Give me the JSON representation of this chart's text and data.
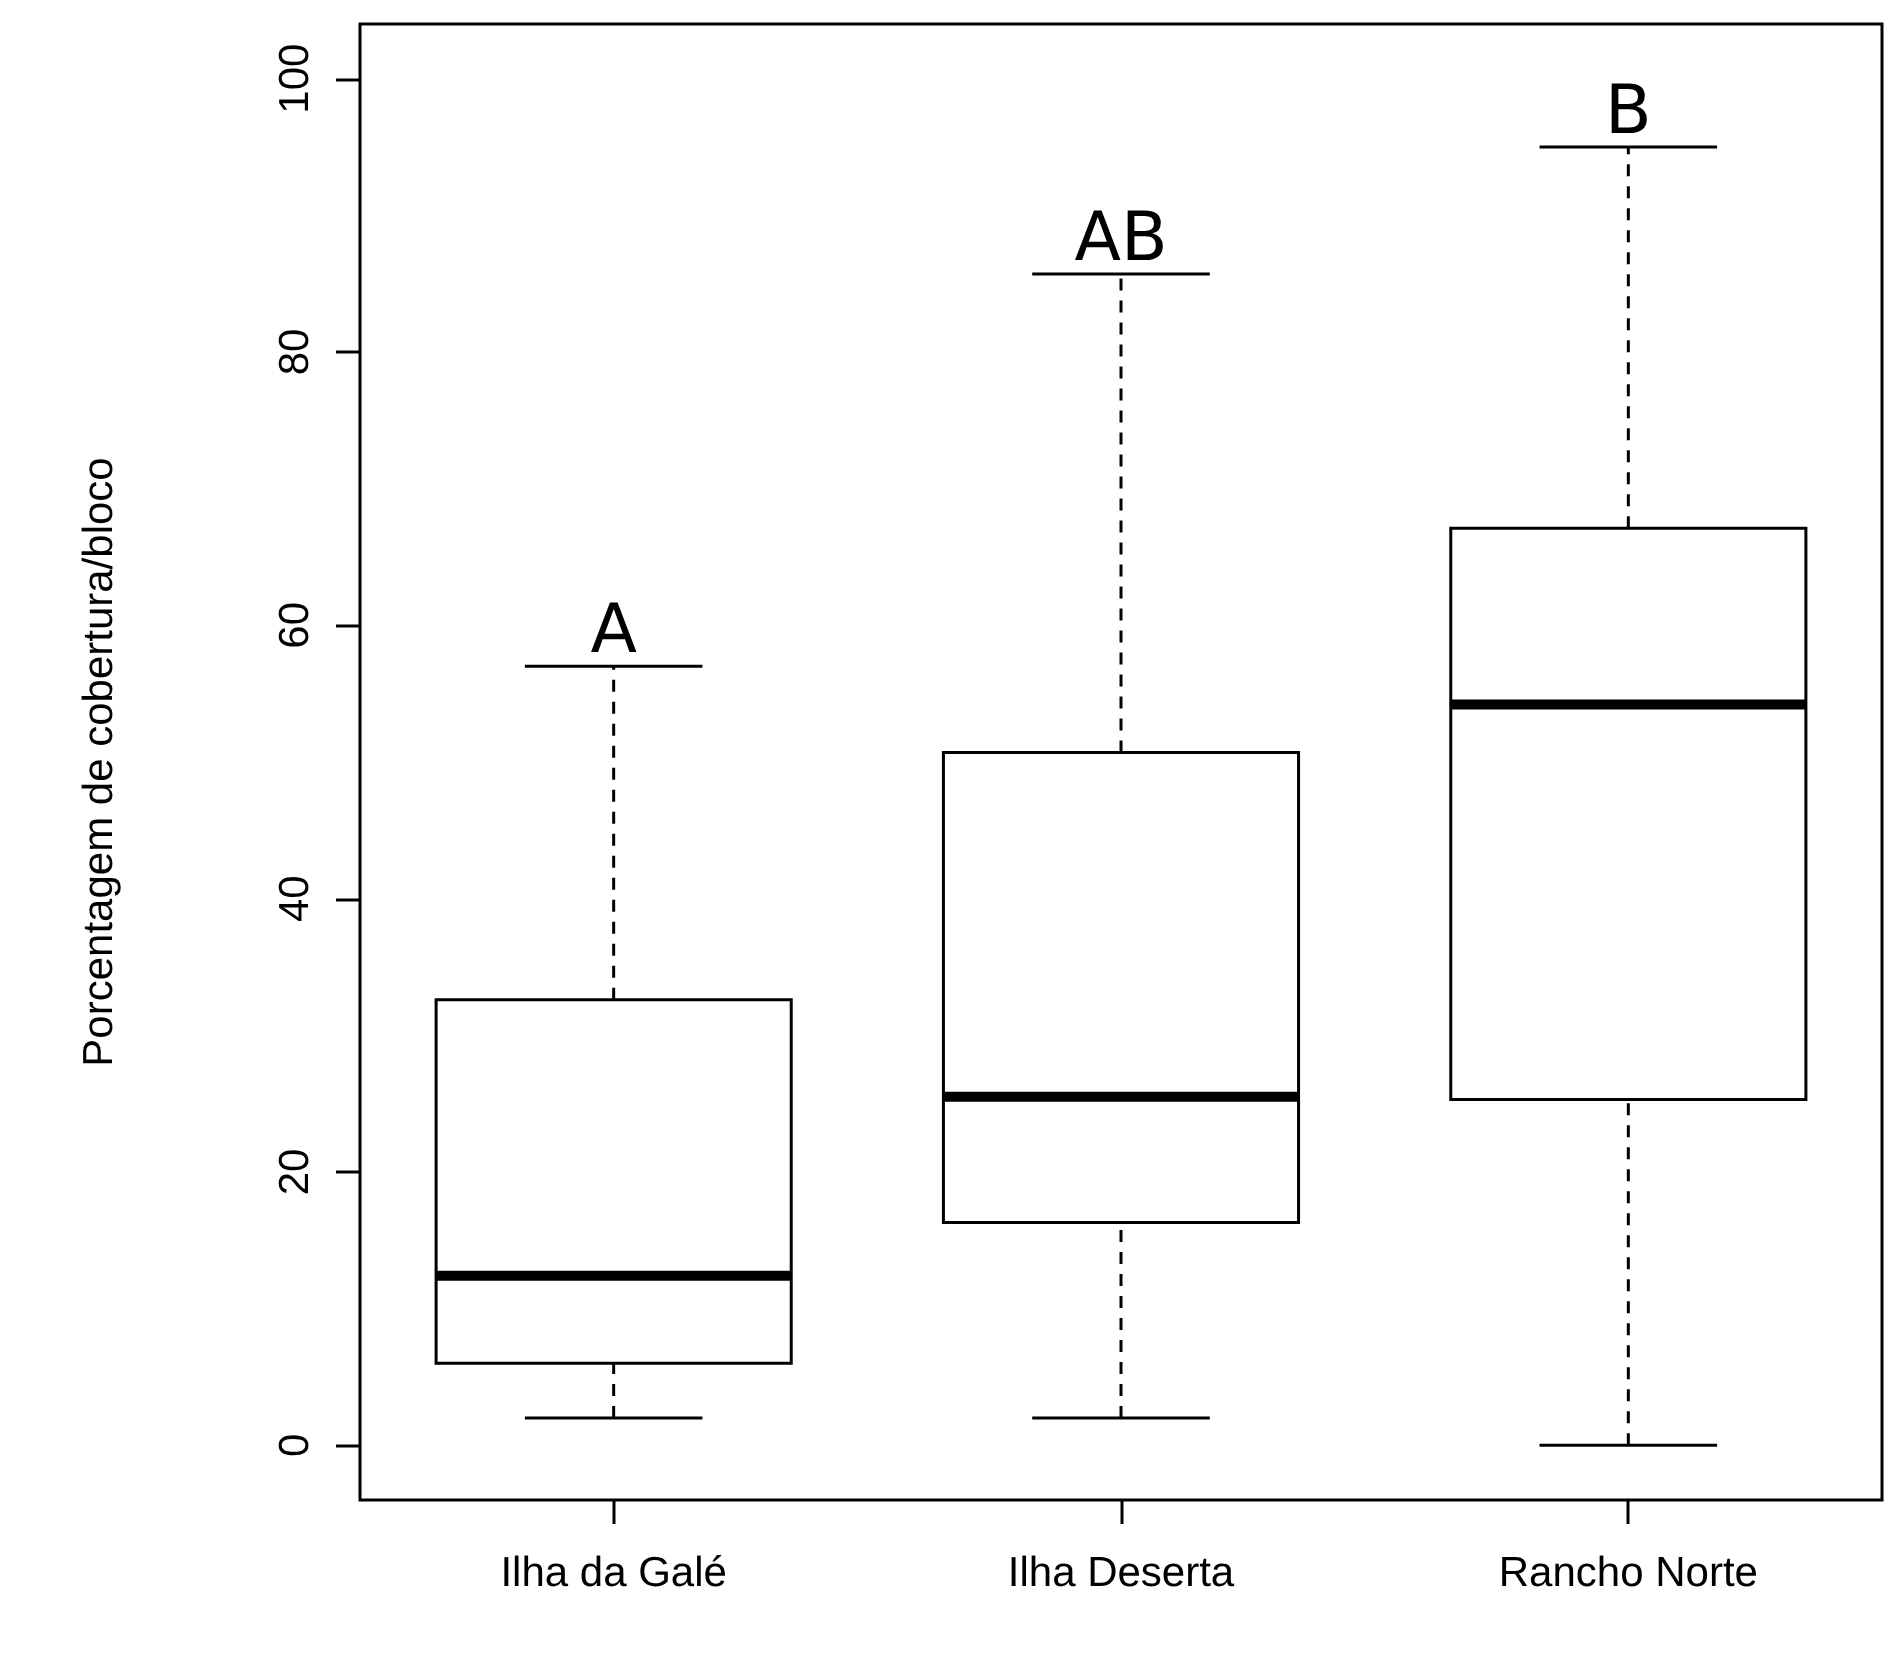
{
  "chart_data": {
    "type": "box",
    "ylabel": "Porcentagem de cobertura/bloco",
    "categories": [
      "Ilha da Galé",
      "Ilha Deserta",
      "Rancho Norte"
    ],
    "series": [
      {
        "color": "#000000",
        "boxes": [
          {
            "low": 2,
            "q1": 6,
            "median": 12.4,
            "q3": 32.6,
            "high": 57
          },
          {
            "low": 2,
            "q1": 16.3,
            "median": 25.5,
            "q3": 50.7,
            "high": 85.7
          },
          {
            "low": 0,
            "q1": 25.3,
            "median": 54.2,
            "q3": 67.1,
            "high": 95
          }
        ]
      }
    ],
    "ylim": [
      -4,
      104
    ],
    "yticks": [
      0,
      20,
      40,
      60,
      80,
      100
    ],
    "annotations": [
      {
        "text": "A",
        "x": "Ilha da Galé",
        "y": 57
      },
      {
        "text": "AB",
        "x": "Ilha Deserta",
        "y": 85.7
      },
      {
        "text": "B",
        "x": "Rancho Norte",
        "y": 95
      }
    ]
  }
}
